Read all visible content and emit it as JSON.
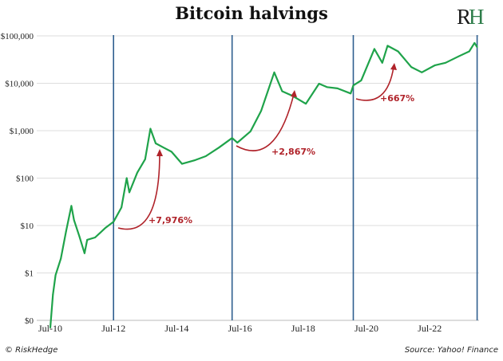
{
  "chart_data": {
    "type": "line",
    "title": "Bitcoin halvings",
    "xlabel": "",
    "ylabel": "",
    "y_scale": "log",
    "grid": true,
    "y_ticks": [
      {
        "value": 0.1,
        "label": "$0"
      },
      {
        "value": 1,
        "label": "$1"
      },
      {
        "value": 10,
        "label": "$10"
      },
      {
        "value": 100,
        "label": "$100"
      },
      {
        "value": 1000,
        "label": "$1,000"
      },
      {
        "value": 10000,
        "label": "$10,000"
      },
      {
        "value": 100000,
        "label": "$100,000"
      }
    ],
    "x_ticks": [
      {
        "value": "2010-07",
        "label": "Jul-10"
      },
      {
        "value": "2012-07",
        "label": "Jul-12"
      },
      {
        "value": "2014-07",
        "label": "Jul-14"
      },
      {
        "value": "2016-07",
        "label": "Jul-16"
      },
      {
        "value": "2018-07",
        "label": "Jul-18"
      },
      {
        "value": "2020-07",
        "label": "Jul-20"
      },
      {
        "value": "2022-07",
        "label": "Jul-22"
      }
    ],
    "series_color": "#1fa34a",
    "halving_line_color": "#2f5f8f",
    "annotation_color": "#b0232a",
    "halvings": [
      "2012-07",
      "2016-04",
      "2020-02",
      "2024-01"
    ],
    "series": [
      {
        "points": [
          [
            "2010-07",
            0.07
          ],
          [
            "2010-08",
            0.35
          ],
          [
            "2010-09",
            0.9
          ],
          [
            "2010-11",
            2
          ],
          [
            "2011-01",
            7.6
          ],
          [
            "2011-03",
            26
          ],
          [
            "2011-04",
            13
          ],
          [
            "2011-06",
            6
          ],
          [
            "2011-08",
            2.6
          ],
          [
            "2011-09",
            5
          ],
          [
            "2011-12",
            5.6
          ],
          [
            "2012-04",
            9
          ],
          [
            "2012-07",
            12
          ],
          [
            "2012-10",
            24
          ],
          [
            "2012-12",
            100
          ],
          [
            "2013-01",
            50
          ],
          [
            "2013-04",
            130
          ],
          [
            "2013-07",
            250
          ],
          [
            "2013-09",
            1100
          ],
          [
            "2013-11",
            540
          ],
          [
            "2014-02",
            440
          ],
          [
            "2014-05",
            360
          ],
          [
            "2014-09",
            200
          ],
          [
            "2015-02",
            240
          ],
          [
            "2015-06",
            290
          ],
          [
            "2015-11",
            440
          ],
          [
            "2016-04",
            700
          ],
          [
            "2016-06",
            560
          ],
          [
            "2016-11",
            970
          ],
          [
            "2017-03",
            2600
          ],
          [
            "2017-08",
            17000
          ],
          [
            "2017-11",
            6800
          ],
          [
            "2018-03",
            5400
          ],
          [
            "2018-08",
            3700
          ],
          [
            "2019-01",
            9800
          ],
          [
            "2019-04",
            8300
          ],
          [
            "2019-08",
            7800
          ],
          [
            "2020-01",
            6100
          ],
          [
            "2020-02",
            9000
          ],
          [
            "2020-05",
            11500
          ],
          [
            "2020-10",
            53000
          ],
          [
            "2021-01",
            27000
          ],
          [
            "2021-03",
            62000
          ],
          [
            "2021-07",
            47000
          ],
          [
            "2021-12",
            22000
          ],
          [
            "2022-04",
            17000
          ],
          [
            "2022-09",
            24000
          ],
          [
            "2023-01",
            27000
          ],
          [
            "2023-06",
            37000
          ],
          [
            "2023-10",
            47000
          ],
          [
            "2023-12",
            71000
          ],
          [
            "2024-01",
            58000
          ]
        ]
      }
    ],
    "annotations": [
      {
        "text": "+7,976%"
      },
      {
        "text": "+2,867%"
      },
      {
        "text": "+667%"
      }
    ]
  },
  "logo_text": "RH",
  "footer": {
    "copyright": "© RiskHedge",
    "source": "Source: Yahoo! Finance"
  }
}
